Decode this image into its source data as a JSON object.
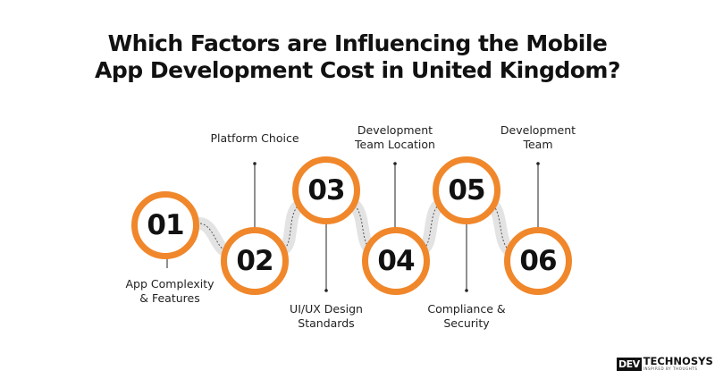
{
  "title": {
    "line1": "Which Factors are Influencing the Mobile",
    "line2": "App Development Cost in United Kingdom?"
  },
  "steps": [
    {
      "number": "01",
      "label_lines": [
        "App Complexity",
        "& Features"
      ]
    },
    {
      "number": "02",
      "label_lines": [
        "Platform Choice"
      ]
    },
    {
      "number": "03",
      "label_lines": [
        "UI/UX Design",
        "Standards"
      ]
    },
    {
      "number": "04",
      "label_lines": [
        "Development",
        "Team Location"
      ]
    },
    {
      "number": "05",
      "label_lines": [
        "Compliance &",
        "Security"
      ]
    },
    {
      "number": "06",
      "label_lines": [
        "Development",
        "Team"
      ]
    }
  ],
  "logo": {
    "mark": "DEV",
    "word": "TECHNOSYS",
    "tagline": "INSPIRED BY THOUGHTS"
  },
  "colors": {
    "accent": "#F0872B",
    "wave": "#E3E3E3",
    "text": "#111111"
  }
}
